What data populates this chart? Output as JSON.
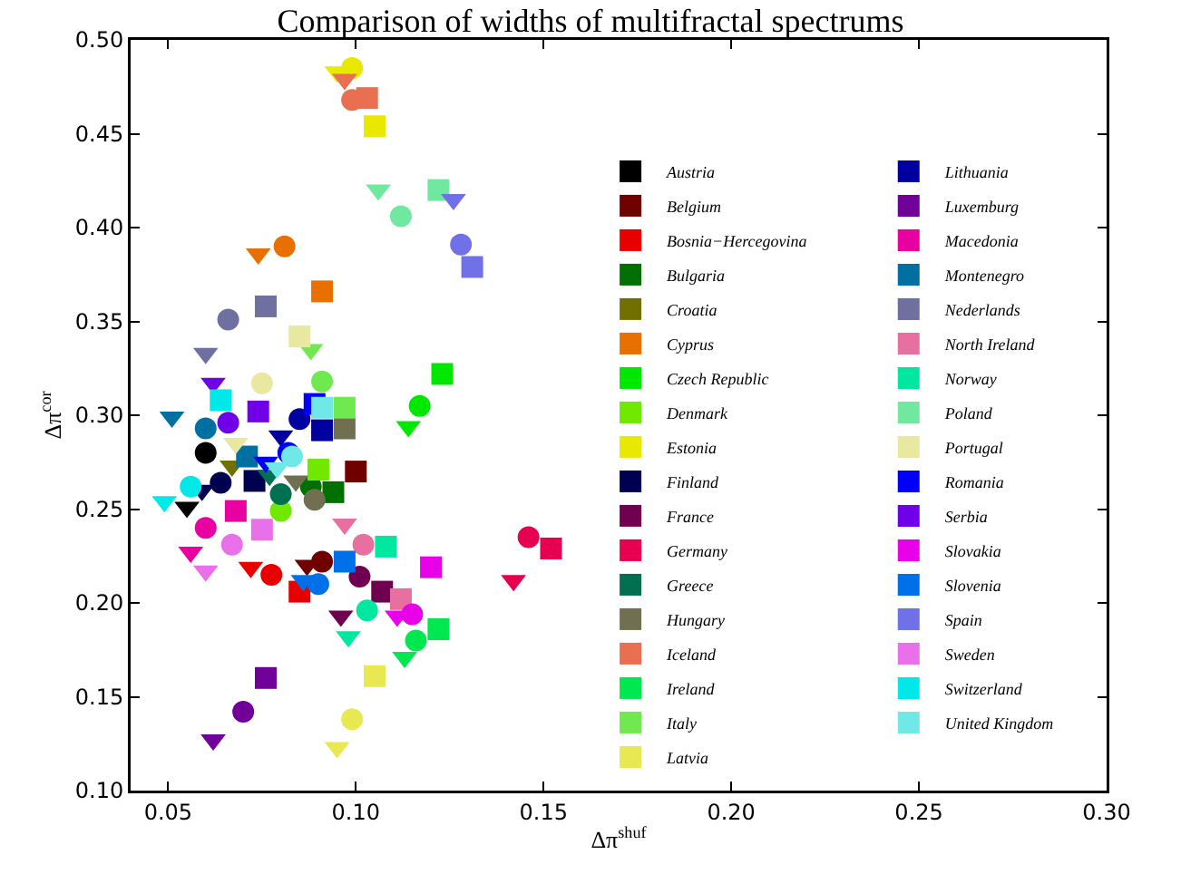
{
  "chart_data": {
    "type": "scatter",
    "title": "Comparison of widths of multifractal spectrums",
    "xlabel": "Δπ$^{shuf}$",
    "ylabel": "Δπ$^{cor}$",
    "xlim": [
      0.04,
      0.3
    ],
    "ylim": [
      0.1,
      0.5
    ],
    "xticks": [
      {
        "value": 0.05,
        "label": "0.05"
      },
      {
        "value": 0.1,
        "label": "0.10"
      },
      {
        "value": 0.15,
        "label": "0.15"
      },
      {
        "value": 0.2,
        "label": "0.20"
      },
      {
        "value": 0.25,
        "label": "0.25"
      },
      {
        "value": 0.3,
        "label": "0.30"
      }
    ],
    "yticks": [
      {
        "value": 0.1,
        "label": "0.10"
      },
      {
        "value": 0.15,
        "label": "0.15"
      },
      {
        "value": 0.2,
        "label": "0.20"
      },
      {
        "value": 0.25,
        "label": "0.25"
      },
      {
        "value": 0.3,
        "label": "0.30"
      },
      {
        "value": 0.35,
        "label": "0.35"
      },
      {
        "value": 0.4,
        "label": "0.40"
      },
      {
        "value": 0.45,
        "label": "0.45"
      },
      {
        "value": 0.5,
        "label": "0.50"
      }
    ],
    "grid": false,
    "legend": "bottom right",
    "marker": [
      "square",
      "circle",
      "triangle"
    ],
    "series": [
      {
        "name": "Austria",
        "color": "#000000",
        "x": [
          null,
          0.06,
          0.055
        ],
        "values": [
          null,
          0.28,
          0.251
        ]
      },
      {
        "name": "Belgium",
        "color": "#700000",
        "x": [
          0.1,
          0.091,
          0.087
        ],
        "values": [
          0.27,
          0.222,
          0.22
        ]
      },
      {
        "name": "Bosnia−Hercegovina",
        "color": "#e80000",
        "x": [
          0.085,
          0.0775,
          0.072
        ],
        "values": [
          0.206,
          0.215,
          0.219
        ]
      },
      {
        "name": "Bulgaria",
        "color": "#007000",
        "x": [
          0.094,
          0.088,
          null
        ],
        "values": [
          0.259,
          0.262,
          null
        ]
      },
      {
        "name": "Croatia",
        "color": "#707000",
        "x": [
          null,
          null,
          0.067
        ],
        "values": [
          null,
          null,
          0.273
        ]
      },
      {
        "name": "Cyprus",
        "color": "#e87000",
        "x": [
          0.091,
          0.081,
          0.074
        ],
        "values": [
          0.366,
          0.39,
          0.386
        ]
      },
      {
        "name": "Czech Republic",
        "color": "#00e800",
        "x": [
          0.123,
          0.117,
          0.114
        ],
        "values": [
          0.322,
          0.305,
          0.294
        ]
      },
      {
        "name": "Denmark",
        "color": "#70e800",
        "x": [
          0.09,
          0.08,
          null
        ],
        "values": [
          0.271,
          0.249,
          null
        ]
      },
      {
        "name": "Estonia",
        "color": "#e8e800",
        "x": [
          0.105,
          0.099,
          0.095
        ],
        "values": [
          0.454,
          0.485,
          0.483
        ]
      },
      {
        "name": "Finland",
        "color": "#000050",
        "x": [
          0.073,
          0.064,
          0.059
        ],
        "values": [
          0.265,
          0.264,
          0.26
        ]
      },
      {
        "name": "France",
        "color": "#700050",
        "x": [
          0.107,
          0.101,
          0.096
        ],
        "values": [
          0.206,
          0.214,
          0.193
        ]
      },
      {
        "name": "Germany",
        "color": "#e80050",
        "x": [
          0.152,
          0.146,
          0.142
        ],
        "values": [
          0.229,
          0.235,
          0.212
        ]
      },
      {
        "name": "Greece",
        "color": "#007050",
        "x": [
          null,
          0.08,
          0.077
        ],
        "values": [
          null,
          0.258,
          0.268
        ]
      },
      {
        "name": "Hungary",
        "color": "#707050",
        "x": [
          0.097,
          0.089,
          0.084
        ],
        "values": [
          0.293,
          0.255,
          0.265
        ]
      },
      {
        "name": "Iceland",
        "color": "#e87050",
        "x": [
          0.103,
          0.099,
          0.097
        ],
        "values": [
          0.469,
          0.468,
          0.479
        ]
      },
      {
        "name": "Ireland",
        "color": "#00e850",
        "x": [
          0.122,
          0.116,
          0.113
        ],
        "values": [
          0.186,
          0.18,
          0.171
        ]
      },
      {
        "name": "Italy",
        "color": "#70e850",
        "x": [
          0.097,
          0.091,
          0.088
        ],
        "values": [
          0.304,
          0.318,
          0.335
        ]
      },
      {
        "name": "Latvia",
        "color": "#e8e850",
        "x": [
          0.105,
          0.099,
          0.095
        ],
        "values": [
          0.161,
          0.138,
          0.123
        ]
      },
      {
        "name": "Lithuania",
        "color": "#0000a0",
        "x": [
          0.091,
          0.085,
          0.08
        ],
        "values": [
          0.292,
          0.298,
          0.289
        ]
      },
      {
        "name": "Luxemburg",
        "color": "#700098",
        "x": [
          0.076,
          0.07,
          0.062
        ],
        "values": [
          0.16,
          0.142,
          0.127
        ]
      },
      {
        "name": "Macedonia",
        "color": "#e800a0",
        "x": [
          0.068,
          0.06,
          0.056
        ],
        "values": [
          0.249,
          0.24,
          0.227
        ]
      },
      {
        "name": "Montenegro",
        "color": "#0070a0",
        "x": [
          0.071,
          0.06,
          0.051
        ],
        "values": [
          0.278,
          0.293,
          0.299
        ]
      },
      {
        "name": "Nederlands",
        "color": "#7070a0",
        "x": [
          0.076,
          0.066,
          0.06
        ],
        "values": [
          0.358,
          0.351,
          0.333
        ]
      },
      {
        "name": "North Ireland",
        "color": "#e870a0",
        "x": [
          0.112,
          0.102,
          0.097
        ],
        "values": [
          0.202,
          0.231,
          0.242
        ]
      },
      {
        "name": "Norway",
        "color": "#00e8a0",
        "x": [
          0.108,
          0.103,
          0.098
        ],
        "values": [
          0.23,
          0.196,
          0.182
        ]
      },
      {
        "name": "Poland",
        "color": "#70e8a0",
        "x": [
          0.122,
          0.112,
          0.106
        ],
        "values": [
          0.42,
          0.406,
          0.42
        ]
      },
      {
        "name": "Portugal",
        "color": "#e8e8a0",
        "x": [
          0.085,
          0.075,
          0.068
        ],
        "values": [
          0.342,
          0.317,
          0.285
        ]
      },
      {
        "name": "Romania",
        "color": "#0000f8",
        "x": [
          0.089,
          0.082,
          0.076
        ],
        "values": [
          0.306,
          0.28,
          0.275
        ]
      },
      {
        "name": "Serbia",
        "color": "#7000e8",
        "x": [
          0.074,
          0.066,
          0.062
        ],
        "values": [
          0.302,
          0.296,
          0.317
        ]
      },
      {
        "name": "Slovakia",
        "color": "#e800e8",
        "x": [
          0.12,
          0.115,
          0.111
        ],
        "values": [
          0.219,
          0.194,
          0.193
        ]
      },
      {
        "name": "Slovenia",
        "color": "#0070e8",
        "x": [
          0.097,
          0.09,
          0.086
        ],
        "values": [
          0.222,
          0.21,
          0.212
        ]
      },
      {
        "name": "Spain",
        "color": "#7070e8",
        "x": [
          0.131,
          0.128,
          0.126
        ],
        "values": [
          0.379,
          0.391,
          0.415
        ]
      },
      {
        "name": "Sweden",
        "color": "#e870e8",
        "x": [
          0.075,
          0.067,
          0.06
        ],
        "values": [
          0.239,
          0.231,
          0.217
        ]
      },
      {
        "name": "Switzerland",
        "color": "#00e8e8",
        "x": [
          0.064,
          0.056,
          0.049
        ],
        "values": [
          0.308,
          0.262,
          0.254
        ]
      },
      {
        "name": "United Kingdom",
        "color": "#70e8e8",
        "x": [
          0.091,
          0.083,
          0.079
        ],
        "values": [
          0.304,
          0.278,
          0.272
        ]
      }
    ]
  }
}
